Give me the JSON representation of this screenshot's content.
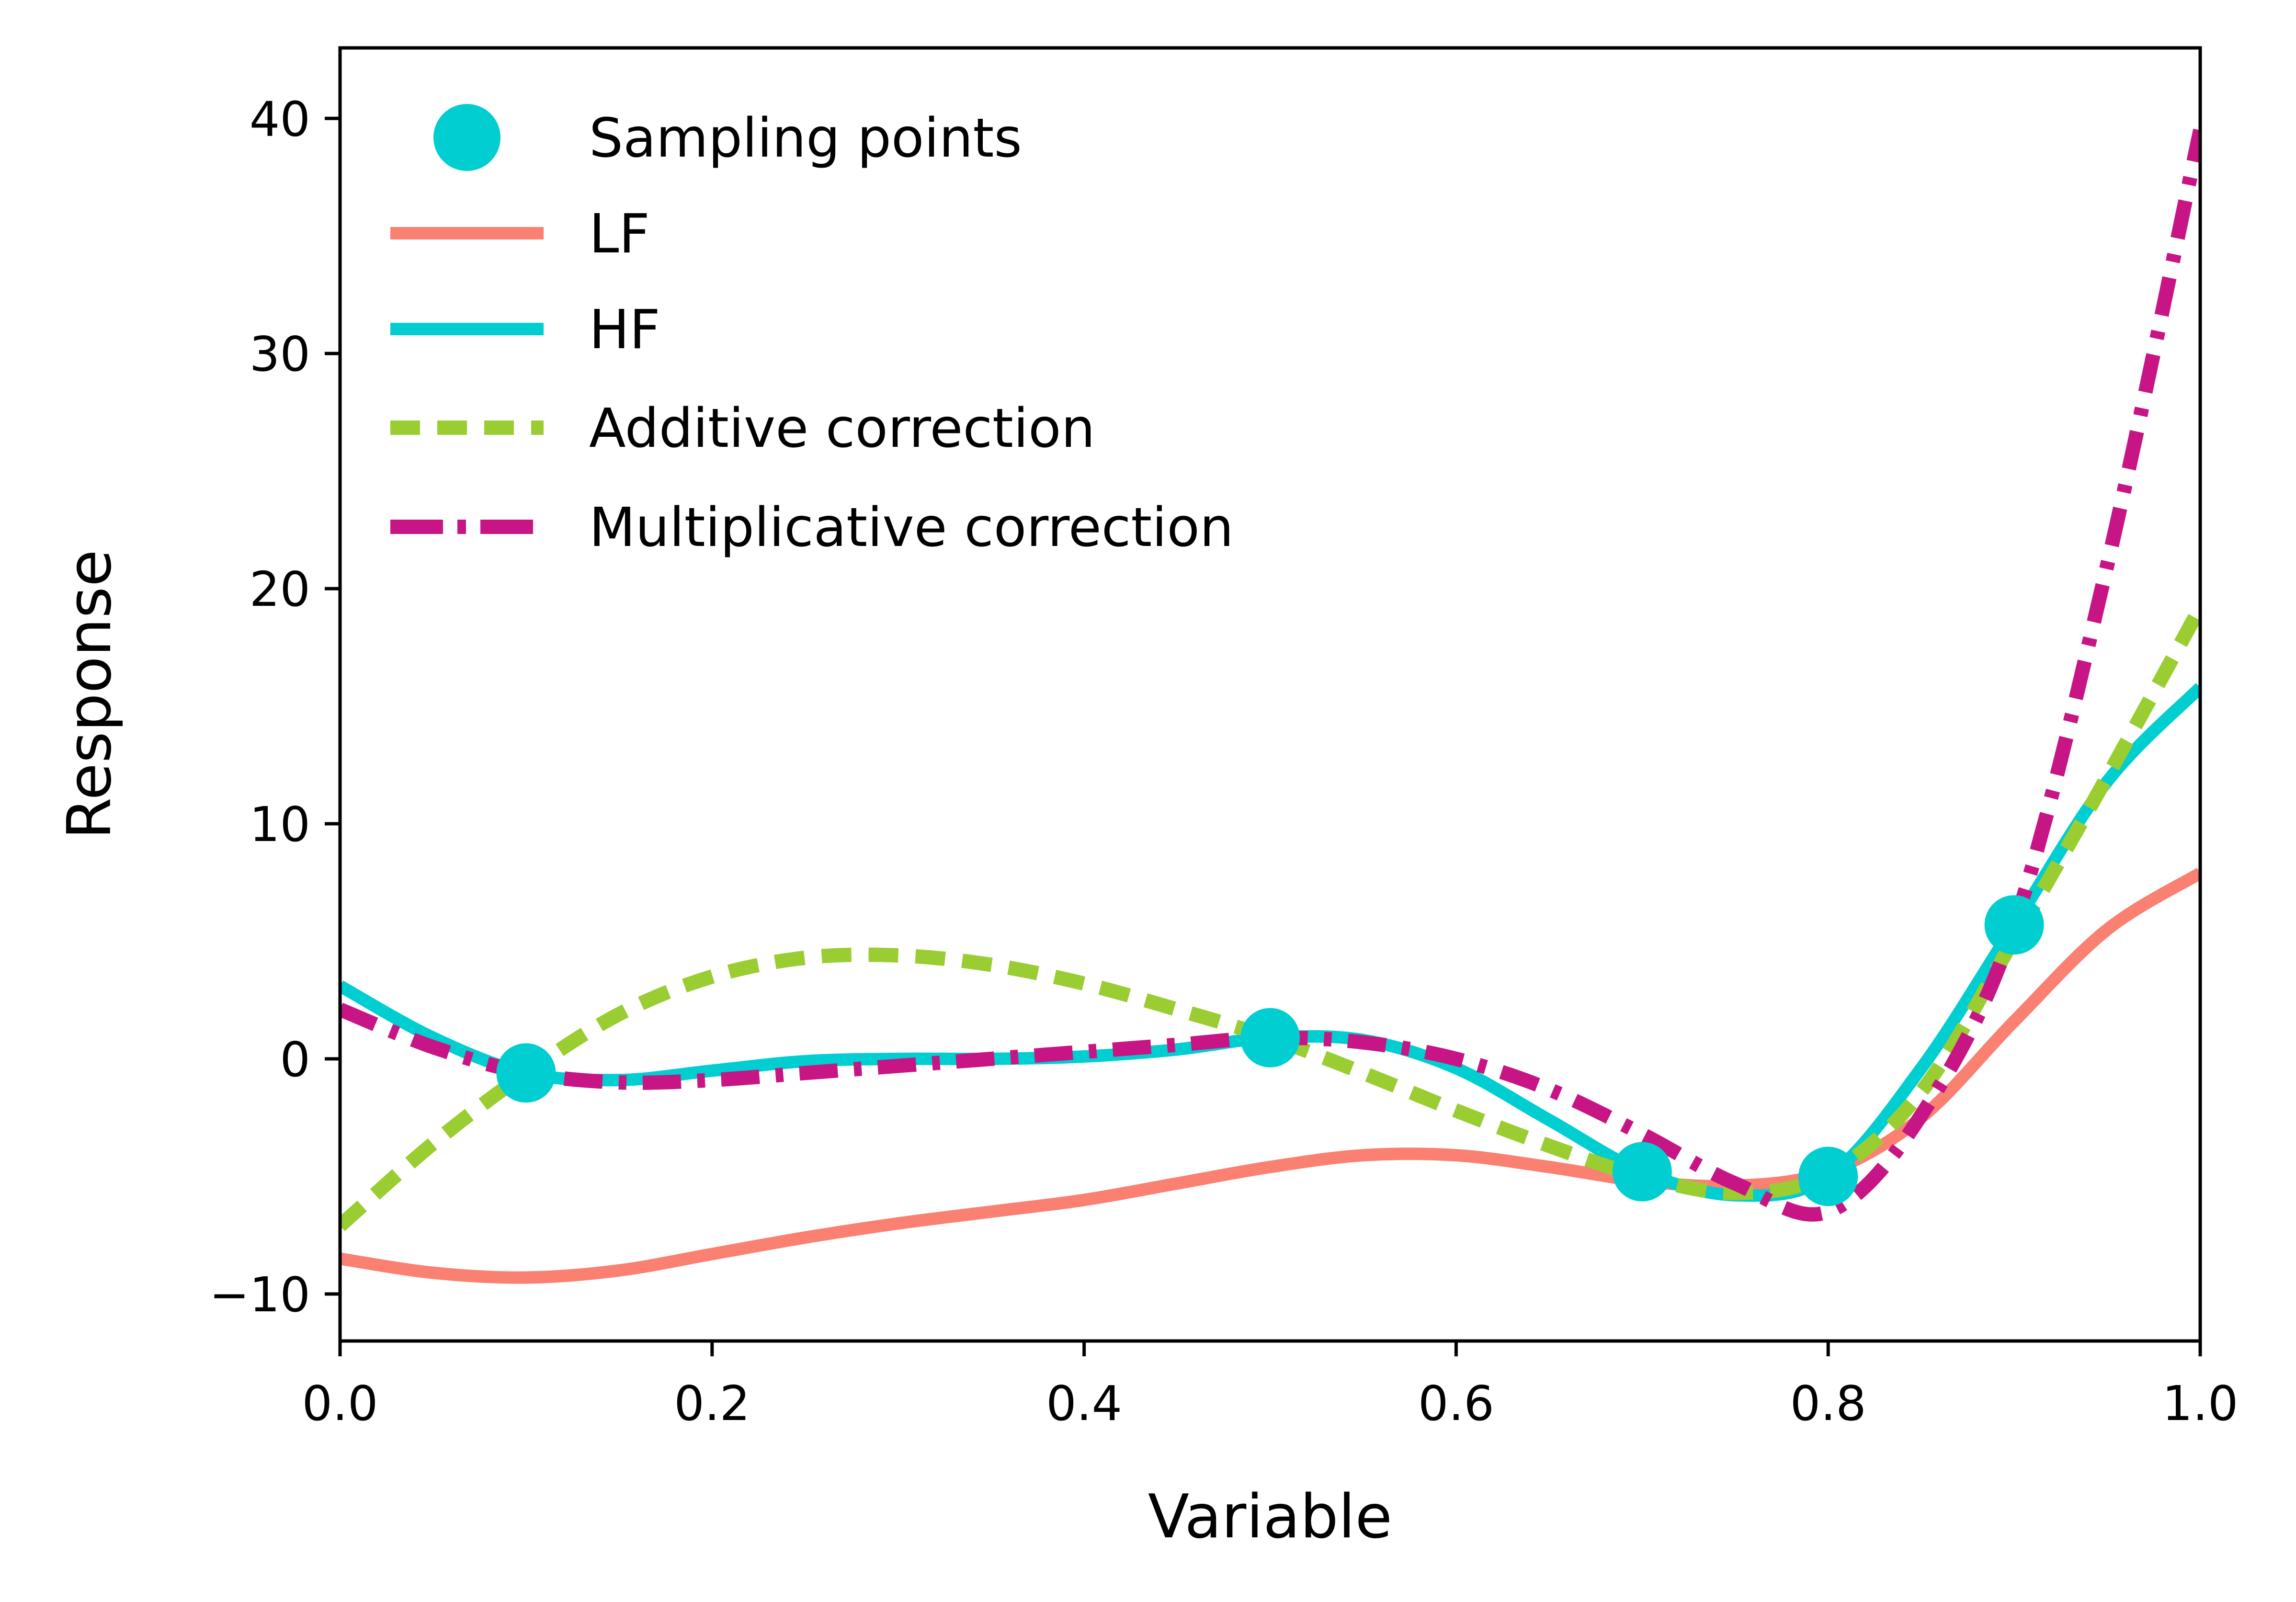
{
  "chart_data": {
    "type": "line",
    "title": "",
    "xlabel": "Variable",
    "ylabel": "Response",
    "xlim": [
      0.0,
      1.0
    ],
    "ylim": [
      -12,
      43
    ],
    "x_ticks": [
      0.0,
      0.2,
      0.4,
      0.6,
      0.8,
      1.0
    ],
    "x_tick_labels": [
      "0.0",
      "0.2",
      "0.4",
      "0.6",
      "0.8",
      "1.0"
    ],
    "y_ticks": [
      -10,
      0,
      10,
      20,
      30,
      40
    ],
    "y_tick_labels": [
      "−10",
      "0",
      "10",
      "20",
      "30",
      "40"
    ],
    "grid": false,
    "legend_position": "top-left",
    "sampling_points": {
      "name": "Sampling points",
      "color": "#00CED1",
      "x": [
        0.1,
        0.5,
        0.7,
        0.8,
        0.9
      ],
      "y": [
        -0.6,
        0.9,
        -4.8,
        -5.0,
        5.7
      ]
    },
    "series": [
      {
        "name": "LF",
        "color": "#FA8072",
        "style": "solid",
        "x": [
          0.0,
          0.05,
          0.1,
          0.15,
          0.2,
          0.25,
          0.3,
          0.35,
          0.4,
          0.45,
          0.5,
          0.55,
          0.6,
          0.65,
          0.7,
          0.75,
          0.8,
          0.85,
          0.9,
          0.95,
          1.0
        ],
        "y": [
          -8.5,
          -9.1,
          -9.3,
          -9.0,
          -8.3,
          -7.6,
          -7.0,
          -6.5,
          -6.0,
          -5.3,
          -4.6,
          -4.1,
          -4.1,
          -4.6,
          -5.2,
          -5.4,
          -4.8,
          -2.5,
          1.6,
          5.5,
          7.9
        ]
      },
      {
        "name": "HF",
        "color": "#00CED1",
        "style": "solid",
        "x": [
          0.0,
          0.05,
          0.1,
          0.15,
          0.2,
          0.25,
          0.3,
          0.35,
          0.4,
          0.45,
          0.5,
          0.55,
          0.6,
          0.65,
          0.7,
          0.75,
          0.8,
          0.85,
          0.9,
          0.95,
          1.0
        ],
        "y": [
          3.1,
          0.9,
          -0.6,
          -0.9,
          -0.5,
          -0.1,
          0.0,
          0.0,
          0.1,
          0.4,
          0.9,
          0.8,
          -0.4,
          -2.6,
          -4.8,
          -5.8,
          -5.0,
          -0.4,
          5.7,
          11.8,
          15.8
        ]
      },
      {
        "name": "Additive correction",
        "color": "#9ACD32",
        "style": "dashed",
        "x": [
          0.0,
          0.05,
          0.1,
          0.15,
          0.2,
          0.25,
          0.3,
          0.35,
          0.4,
          0.45,
          0.5,
          0.55,
          0.6,
          0.65,
          0.7,
          0.75,
          0.8,
          0.85,
          0.9,
          0.95,
          1.0
        ],
        "y": [
          -7.1,
          -3.6,
          -0.6,
          1.9,
          3.5,
          4.3,
          4.4,
          4.0,
          3.2,
          2.1,
          0.9,
          -0.6,
          -2.2,
          -3.7,
          -5.0,
          -5.7,
          -4.9,
          -1.4,
          5.1,
          12.0,
          19.2
        ]
      },
      {
        "name": "Multiplicative correction",
        "color": "#C71585",
        "style": "dashdot",
        "x": [
          0.0,
          0.05,
          0.1,
          0.15,
          0.2,
          0.25,
          0.3,
          0.35,
          0.4,
          0.45,
          0.5,
          0.55,
          0.6,
          0.65,
          0.7,
          0.75,
          0.8,
          0.85,
          0.9,
          0.95,
          1.0
        ],
        "y": [
          2.1,
          0.5,
          -0.6,
          -1.0,
          -0.9,
          -0.6,
          -0.3,
          0.0,
          0.3,
          0.6,
          0.9,
          0.7,
          0.0,
          -1.3,
          -3.2,
          -5.3,
          -6.5,
          -2.4,
          5.7,
          21.0,
          39.5
        ]
      }
    ]
  }
}
